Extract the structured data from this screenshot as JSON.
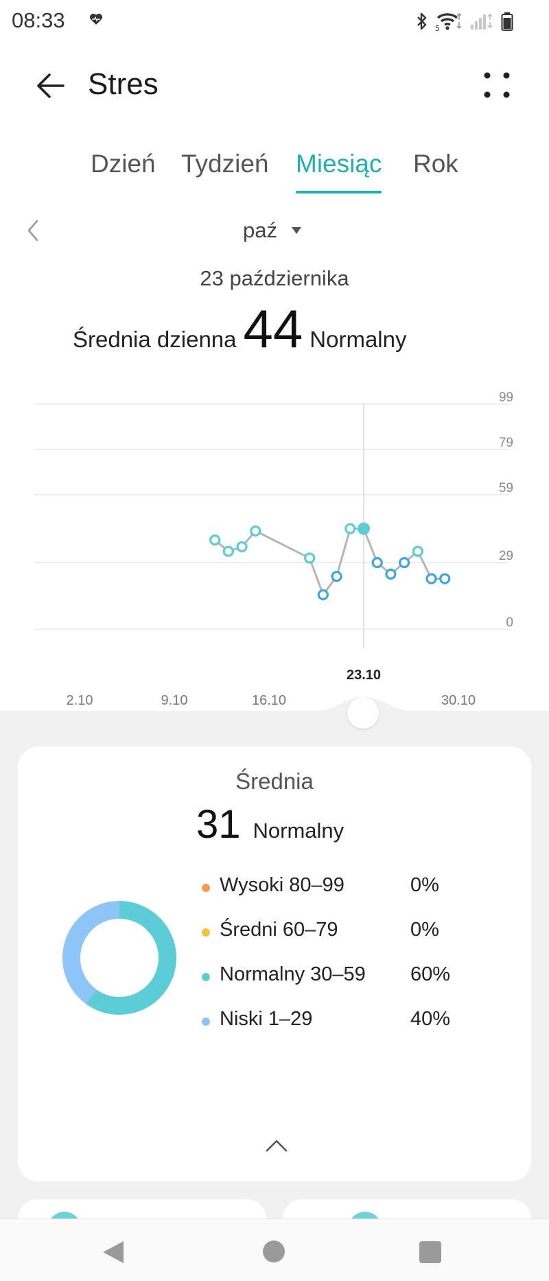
{
  "status_bar": {
    "time": "08:33",
    "icons": [
      "heart-pulse-icon",
      "bluetooth-icon",
      "wifi-icon",
      "signal-icon",
      "battery-icon"
    ],
    "wifi_badge": "5"
  },
  "header": {
    "title": "Stres",
    "back_icon": "arrow-left-icon",
    "more_icon": "four-dots-icon"
  },
  "tabs": [
    {
      "label": "Dzień",
      "active": false
    },
    {
      "label": "Tydzień",
      "active": false
    },
    {
      "label": "Miesiąc",
      "active": true
    },
    {
      "label": "Rok",
      "active": false
    }
  ],
  "period": {
    "label": "paź",
    "prev_icon": "chevron-left-icon",
    "caret_icon": "caret-down-icon"
  },
  "selected": {
    "date": "23 października",
    "avg_label": "Średnia dzienna",
    "avg_value": "44",
    "status": "Normalny"
  },
  "chart_data": {
    "type": "line",
    "y_ticks": [
      "99",
      "79",
      "59",
      "29",
      "0"
    ],
    "ylim": [
      0,
      99
    ],
    "x_tick_labels": [
      {
        "day": 2,
        "label": "2.10"
      },
      {
        "day": 9,
        "label": "9.10"
      },
      {
        "day": 16,
        "label": "16.10"
      },
      {
        "day": 30,
        "label": "30.10"
      }
    ],
    "selected_day": 23,
    "selected_label": "23.10",
    "points": [
      {
        "day": 12,
        "value": 39
      },
      {
        "day": 13,
        "value": 34
      },
      {
        "day": 14,
        "value": 36
      },
      {
        "day": 15,
        "value": 43
      },
      {
        "day": 19,
        "value": 31
      },
      {
        "day": 20,
        "value": 15
      },
      {
        "day": 21,
        "value": 23
      },
      {
        "day": 22,
        "value": 44
      },
      {
        "day": 23,
        "value": 44
      },
      {
        "day": 24,
        "value": 29
      },
      {
        "day": 25,
        "value": 24
      },
      {
        "day": 26,
        "value": 29
      },
      {
        "day": 27,
        "value": 34
      },
      {
        "day": 28,
        "value": 22
      },
      {
        "day": 29,
        "value": 22
      }
    ],
    "colors": {
      "normal": "#5ccdd6",
      "low": "#3ea6e0",
      "line": "#b5b5b5"
    },
    "grid": true
  },
  "summary": {
    "title": "Średnia",
    "value": "31",
    "status": "Normalny",
    "legend": [
      {
        "label": "Wysoki 80–99",
        "pct": "0%",
        "percent": 0,
        "color": "#f59a57"
      },
      {
        "label": "Średni 60–79",
        "pct": "0%",
        "percent": 0,
        "color": "#f3c144"
      },
      {
        "label": "Normalny 30–59",
        "pct": "60%",
        "percent": 60,
        "color": "#5ccdd6"
      },
      {
        "label": "Niski 1–29",
        "pct": "40%",
        "percent": 40,
        "color": "#8ec5f7"
      }
    ],
    "collapse_icon": "chevron-up-icon"
  },
  "nav_bar": {
    "icons": [
      "nav-back-icon",
      "nav-home-icon",
      "nav-recents-icon"
    ]
  }
}
